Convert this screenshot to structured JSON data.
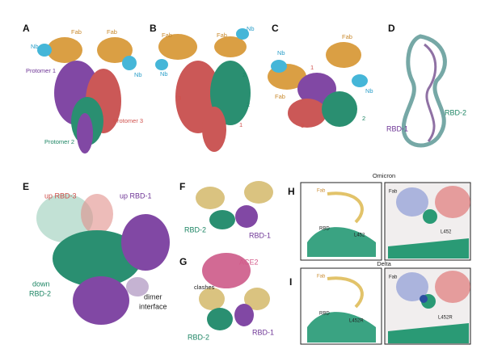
{
  "panels": {
    "a": {
      "letter": "A",
      "labels": [
        "Fab",
        "Fab",
        "Nb",
        "Nb",
        "Protomer 1",
        "Protomer 3",
        "Protomer 2"
      ]
    },
    "b": {
      "letter": "B",
      "labels": [
        "Fab",
        "Fab",
        "Nb",
        "Nb",
        "Nb",
        "3",
        "2",
        "2",
        "1"
      ]
    },
    "c": {
      "letter": "C",
      "labels": [
        "Nb",
        "1",
        "Fab",
        "Fab",
        "Nb",
        "3",
        "2"
      ]
    },
    "d": {
      "letter": "D",
      "labels": [
        "RBD-2",
        "RBD-1"
      ]
    },
    "e": {
      "letter": "E",
      "labels": [
        "up RBD-3",
        "up RBD-1",
        "down",
        "RBD-2",
        "dimer",
        "interface"
      ]
    },
    "f": {
      "letter": "F",
      "labels": [
        "RBD-2",
        "RBD-1"
      ]
    },
    "g": {
      "letter": "G",
      "labels": [
        "ACE2",
        "clashes",
        "RBD-2",
        "RBD-1"
      ]
    },
    "h": {
      "letter": "H",
      "title": "Omicron",
      "labels": [
        "Fab",
        "RBD",
        "L452",
        "Fab",
        "L452"
      ]
    },
    "i": {
      "letter": "I",
      "title": "Delta",
      "labels": [
        "Fab",
        "RBD",
        "L452R",
        "Fab",
        "L452R"
      ]
    }
  }
}
